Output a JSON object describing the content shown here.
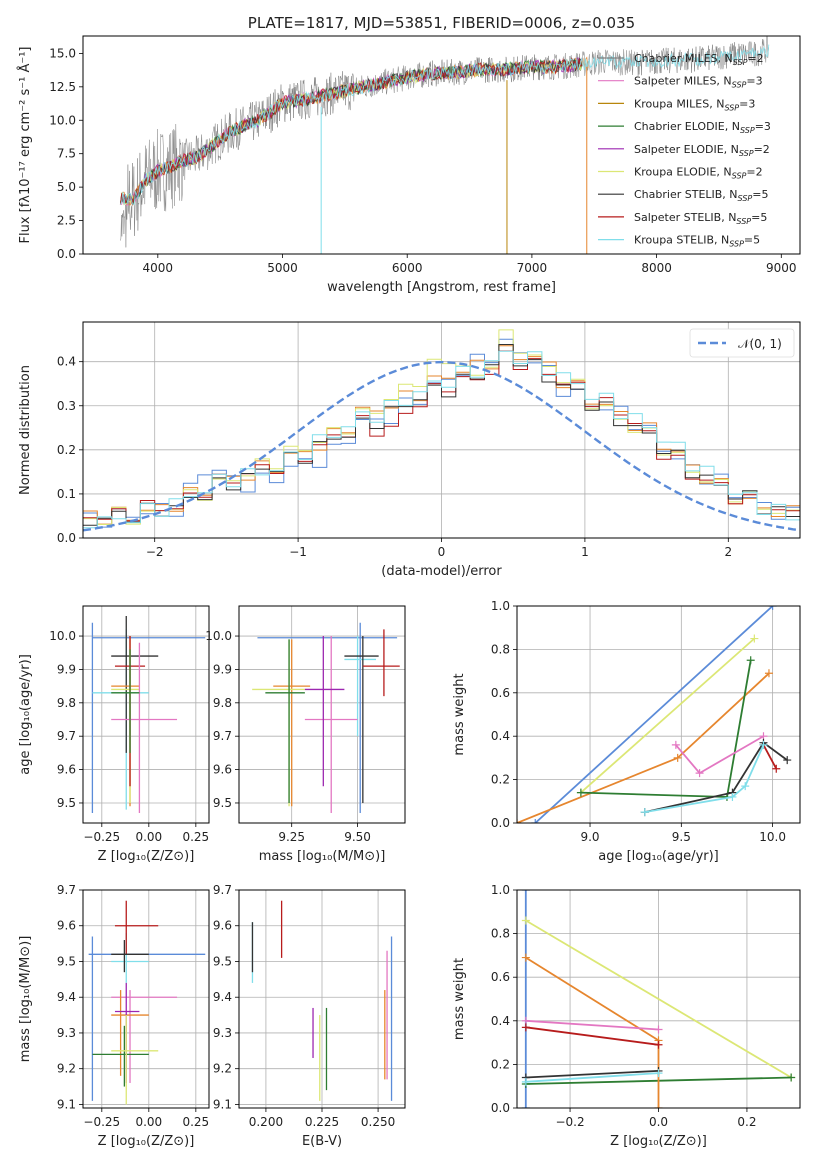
{
  "chart_data": [
    {
      "type": "line",
      "title": "PLATE=1817, MJD=53851, FIBERID=0006, z=0.035",
      "xlabel": "wavelength [Angstrom, rest frame]",
      "ylabel": "Flux [fλ10⁻¹⁷ erg cm⁻² s⁻¹ Å⁻¹]",
      "xlim": [
        3400,
        9150
      ],
      "ylim": [
        0,
        16.3
      ],
      "xticks": [
        "4000",
        "5000",
        "6000",
        "7000",
        "8000",
        "9000"
      ],
      "yticks": [
        "0.0",
        "2.5",
        "5.0",
        "7.5",
        "10.0",
        "12.5",
        "15.0"
      ],
      "grid": false,
      "legend_position": "right",
      "data_series": {
        "x": [
          3700,
          3800,
          3900,
          4000,
          4100,
          4200,
          4300,
          4400,
          4500,
          4600,
          4700,
          4800,
          4900,
          5000,
          5200,
          5400,
          5600,
          5800,
          6000,
          6200,
          6400,
          6600,
          6800,
          7000,
          7200,
          7400,
          7600,
          7800,
          8000,
          8200,
          8400,
          8600,
          8800,
          9000
        ],
        "y": [
          4.2,
          4.0,
          5.5,
          6.2,
          6.5,
          7.0,
          7.2,
          7.8,
          8.6,
          9.2,
          9.6,
          10.0,
          10.6,
          11.3,
          11.6,
          12.0,
          12.4,
          12.8,
          13.2,
          13.5,
          13.6,
          13.8,
          13.8,
          14.0,
          14.0,
          14.2,
          14.4,
          14.3,
          14.4,
          14.5,
          14.6,
          14.9,
          15.0,
          15.6
        ]
      },
      "legend": [
        {
          "label": "Chabrier MILES, N",
          "sub": "SSP",
          "val": "=2",
          "color": "#7f7f7f"
        },
        {
          "label": "Salpeter MILES, N",
          "sub": "SSP",
          "val": "=3",
          "color": "#e377c2"
        },
        {
          "label": "Kroupa MILES, N",
          "sub": "SSP",
          "val": "=3",
          "color": "#b8860b"
        },
        {
          "label": "Chabrier ELODIE, N",
          "sub": "SSP",
          "val": "=3",
          "color": "#2e7d32"
        },
        {
          "label": "Salpeter ELODIE, N",
          "sub": "SSP",
          "val": "=2",
          "color": "#9c27b0"
        },
        {
          "label": "Kroupa ELODIE, N",
          "sub": "SSP",
          "val": "=2",
          "color": "#dce775"
        },
        {
          "label": "Chabrier STELIB, N",
          "sub": "SSP",
          "val": "=5",
          "color": "#333333"
        },
        {
          "label": "Salpeter STELIB, N",
          "sub": "SSP",
          "val": "=5",
          "color": "#b71c1c"
        },
        {
          "label": "Kroupa STELIB, N",
          "sub": "SSP",
          "val": "=5",
          "color": "#80deea"
        }
      ]
    },
    {
      "type": "line",
      "xlabel": "(data-model)/error",
      "ylabel": "Normed distribution",
      "xlim": [
        -2.5,
        2.5
      ],
      "ylim": [
        0,
        0.49
      ],
      "xticks": [
        "−2",
        "−1",
        "0",
        "1",
        "2"
      ],
      "yticks": [
        "0.0",
        "0.1",
        "0.2",
        "0.3",
        "0.4"
      ],
      "grid": true,
      "legend_position": "top-right",
      "legend": [
        {
          "label": "𝒩(0, 1)",
          "color": "#5b8bd8"
        }
      ],
      "normal_curve": {
        "mean": 0,
        "sigma": 1
      },
      "histogram_bin_width": 0.1,
      "series": [
        {
          "color": "#5b8bd8",
          "values": [
            0.04,
            0.05,
            0.06,
            0.07,
            0.17,
            0.12,
            0.13,
            0.17,
            0.18,
            0.26,
            0.27,
            0.32,
            0.36,
            0.4,
            0.44,
            0.4,
            0.33,
            0.3,
            0.28,
            0.22,
            0.16,
            0.13,
            0.09,
            0.06,
            0.04
          ]
        },
        {
          "color": "#e6862e",
          "values": [
            0.05,
            0.05,
            0.06,
            0.08,
            0.12,
            0.14,
            0.16,
            0.19,
            0.22,
            0.28,
            0.3,
            0.33,
            0.37,
            0.39,
            0.42,
            0.41,
            0.35,
            0.31,
            0.27,
            0.23,
            0.17,
            0.12,
            0.08,
            0.06,
            0.05
          ]
        },
        {
          "color": "#dce775",
          "values": [
            0.04,
            0.05,
            0.05,
            0.08,
            0.11,
            0.14,
            0.17,
            0.2,
            0.23,
            0.27,
            0.31,
            0.36,
            0.41,
            0.36,
            0.46,
            0.4,
            0.36,
            0.3,
            0.26,
            0.22,
            0.16,
            0.12,
            0.09,
            0.06,
            0.04
          ]
        },
        {
          "color": "#b71c1c",
          "values": [
            0.05,
            0.05,
            0.07,
            0.07,
            0.12,
            0.14,
            0.16,
            0.18,
            0.22,
            0.26,
            0.24,
            0.31,
            0.35,
            0.36,
            0.41,
            0.39,
            0.35,
            0.31,
            0.28,
            0.21,
            0.15,
            0.12,
            0.08,
            0.06,
            0.05
          ]
        },
        {
          "color": "#333333",
          "values": [
            0.04,
            0.05,
            0.06,
            0.07,
            0.11,
            0.13,
            0.16,
            0.18,
            0.22,
            0.25,
            0.28,
            0.32,
            0.34,
            0.37,
            0.43,
            0.38,
            0.34,
            0.3,
            0.26,
            0.22,
            0.16,
            0.12,
            0.09,
            0.06,
            0.04
          ]
        },
        {
          "color": "#80deea",
          "values": [
            0.04,
            0.04,
            0.06,
            0.08,
            0.12,
            0.14,
            0.15,
            0.19,
            0.23,
            0.27,
            0.29,
            0.33,
            0.36,
            0.38,
            0.42,
            0.4,
            0.36,
            0.32,
            0.28,
            0.24,
            0.18,
            0.13,
            0.09,
            0.06,
            0.04
          ]
        }
      ]
    },
    {
      "type": "scatter",
      "xlabel": "Z [log₁₀(Z/Z⊙)]",
      "ylabel": "age  [log₁₀(age/yr)]",
      "xlim": [
        -0.35,
        0.32
      ],
      "ylim": [
        9.44,
        10.09
      ],
      "xticks": [
        "−0.25",
        "0.00",
        "0.25"
      ],
      "yticks": [
        "9.5",
        "9.6",
        "9.7",
        "9.8",
        "9.9",
        "10.0"
      ],
      "grid": true,
      "errorbars": [
        {
          "x": -0.3,
          "y": 9.995,
          "xlo": -0.3,
          "xhi": 0.3,
          "ylo": 9.47,
          "yhi": 10.04,
          "color": "#5b8bd8"
        },
        {
          "x": -0.12,
          "y": 9.83,
          "xlo": -0.3,
          "xhi": 0.0,
          "ylo": 9.48,
          "yhi": 10.02,
          "color": "#80deea"
        },
        {
          "x": -0.12,
          "y": 9.94,
          "xlo": -0.2,
          "xhi": 0.05,
          "ylo": 9.65,
          "yhi": 10.06,
          "color": "#333333"
        },
        {
          "x": -0.1,
          "y": 9.85,
          "xlo": -0.2,
          "xhi": -0.05,
          "ylo": 9.49,
          "yhi": 10.0,
          "color": "#e6862e"
        },
        {
          "x": -0.1,
          "y": 9.84,
          "xlo": -0.2,
          "xhi": -0.05,
          "ylo": 9.5,
          "yhi": 9.99,
          "color": "#dce775"
        },
        {
          "x": -0.1,
          "y": 9.91,
          "xlo": -0.18,
          "xhi": -0.02,
          "ylo": 9.55,
          "yhi": 10.0,
          "color": "#b71c1c"
        },
        {
          "x": -0.05,
          "y": 9.75,
          "xlo": -0.2,
          "xhi": 0.15,
          "ylo": 9.47,
          "yhi": 9.98,
          "color": "#e377c2"
        },
        {
          "x": -0.1,
          "y": 9.83,
          "xlo": -0.2,
          "xhi": -0.05,
          "ylo": 9.65,
          "yhi": 9.96,
          "color": "#2e7d32"
        }
      ]
    },
    {
      "type": "scatter",
      "xlabel": "mass [log₁₀(M/M⊙)]",
      "ylabel": "",
      "xlim": [
        9.05,
        9.68
      ],
      "ylim": [
        9.44,
        10.09
      ],
      "xticks": [
        "9.25",
        "9.50"
      ],
      "yticks": [
        "9.5",
        "9.6",
        "9.7",
        "9.8",
        "9.9",
        "10.0"
      ],
      "grid": true,
      "errorbars": [
        {
          "x": 9.51,
          "y": 9.995,
          "xlo": 9.12,
          "xhi": 9.65,
          "ylo": 9.47,
          "yhi": 10.04,
          "color": "#5b8bd8"
        },
        {
          "x": 9.5,
          "y": 9.93,
          "xlo": 9.45,
          "xhi": 9.57,
          "ylo": 9.7,
          "yhi": 10.0,
          "color": "#80deea"
        },
        {
          "x": 9.52,
          "y": 9.94,
          "xlo": 9.45,
          "xhi": 9.58,
          "ylo": 9.5,
          "yhi": 10.0,
          "color": "#333333"
        },
        {
          "x": 9.25,
          "y": 9.85,
          "xlo": 9.18,
          "xhi": 9.32,
          "ylo": 9.49,
          "yhi": 9.99,
          "color": "#e6862e"
        },
        {
          "x": 9.24,
          "y": 9.84,
          "xlo": 9.1,
          "xhi": 9.3,
          "ylo": 9.49,
          "yhi": 9.99,
          "color": "#dce775"
        },
        {
          "x": 9.6,
          "y": 9.91,
          "xlo": 9.52,
          "xhi": 9.66,
          "ylo": 9.82,
          "yhi": 10.02,
          "color": "#b71c1c"
        },
        {
          "x": 9.4,
          "y": 9.75,
          "xlo": 9.3,
          "xhi": 9.5,
          "ylo": 9.47,
          "yhi": 10.0,
          "color": "#e377c2"
        },
        {
          "x": 9.37,
          "y": 9.84,
          "xlo": 9.3,
          "xhi": 9.45,
          "ylo": 9.55,
          "yhi": 10.0,
          "color": "#9c27b0"
        },
        {
          "x": 9.24,
          "y": 9.83,
          "xlo": 9.15,
          "xhi": 9.3,
          "ylo": 9.5,
          "yhi": 9.99,
          "color": "#2e7d32"
        }
      ]
    },
    {
      "type": "line",
      "xlabel": "age  [log₁₀(age/yr)]",
      "ylabel": "mass weight",
      "xlim": [
        8.6,
        10.15
      ],
      "ylim": [
        0,
        1.0
      ],
      "xticks": [
        "9.0",
        "9.5",
        "10.0"
      ],
      "yticks": [
        "0.0",
        "0.2",
        "0.4",
        "0.6",
        "0.8",
        "1.0"
      ],
      "grid": true,
      "series": [
        {
          "color": "#5b8bd8",
          "points": [
            [
              8.7,
              0.0
            ],
            [
              10.0,
              1.0
            ]
          ]
        },
        {
          "color": "#e6862e",
          "points": [
            [
              8.6,
              0.0
            ],
            [
              9.48,
              0.3
            ],
            [
              9.98,
              0.69
            ]
          ]
        },
        {
          "color": "#dce775",
          "points": [
            [
              8.95,
              0.14
            ],
            [
              9.9,
              0.85
            ]
          ]
        },
        {
          "color": "#2e7d32",
          "points": [
            [
              8.95,
              0.14
            ],
            [
              9.75,
              0.12
            ],
            [
              9.88,
              0.75
            ]
          ]
        },
        {
          "color": "#e377c2",
          "points": [
            [
              9.47,
              0.36
            ],
            [
              9.6,
              0.23
            ],
            [
              9.95,
              0.4
            ]
          ]
        },
        {
          "color": "#b71c1c",
          "points": [
            [
              9.95,
              0.36
            ],
            [
              10.02,
              0.25
            ]
          ]
        },
        {
          "color": "#333333",
          "points": [
            [
              9.3,
              0.05
            ],
            [
              9.78,
              0.14
            ],
            [
              9.95,
              0.37
            ],
            [
              10.08,
              0.29
            ]
          ]
        },
        {
          "color": "#80deea",
          "points": [
            [
              9.3,
              0.05
            ],
            [
              9.78,
              0.12
            ],
            [
              9.85,
              0.17
            ],
            [
              9.95,
              0.36
            ]
          ]
        }
      ]
    },
    {
      "type": "scatter",
      "xlabel": "Z [log₁₀(Z/Z⊙)]",
      "ylabel": "mass [log₁₀(M/M⊙)]",
      "xlim": [
        -0.35,
        0.32
      ],
      "ylim": [
        9.09,
        9.7
      ],
      "xticks": [
        "−0.25",
        "0.00",
        "0.25"
      ],
      "yticks": [
        "9.1",
        "9.2",
        "9.3",
        "9.4",
        "9.5",
        "9.6",
        "9.7"
      ],
      "grid": true,
      "errorbars": [
        {
          "x": -0.3,
          "y": 9.52,
          "xlo": -0.32,
          "xhi": 0.3,
          "ylo": 9.11,
          "yhi": 9.57,
          "color": "#5b8bd8"
        },
        {
          "x": -0.12,
          "y": 9.5,
          "xlo": -0.2,
          "xhi": 0.0,
          "ylo": 9.44,
          "yhi": 9.58,
          "color": "#80deea"
        },
        {
          "x": -0.12,
          "y": 9.6,
          "xlo": -0.18,
          "xhi": 0.05,
          "ylo": 9.52,
          "yhi": 9.67,
          "color": "#b71c1c"
        },
        {
          "x": -0.1,
          "y": 9.4,
          "xlo": -0.2,
          "xhi": 0.15,
          "ylo": 9.16,
          "yhi": 9.42,
          "color": "#e377c2"
        },
        {
          "x": -0.15,
          "y": 9.35,
          "xlo": -0.2,
          "xhi": 0.0,
          "ylo": 9.18,
          "yhi": 9.42,
          "color": "#e6862e"
        },
        {
          "x": -0.12,
          "y": 9.36,
          "xlo": -0.18,
          "xhi": -0.05,
          "ylo": 9.16,
          "yhi": 9.44,
          "color": "#9c27b0"
        },
        {
          "x": -0.13,
          "y": 9.24,
          "xlo": -0.3,
          "xhi": 0.0,
          "ylo": 9.15,
          "yhi": 9.32,
          "color": "#2e7d32"
        },
        {
          "x": -0.12,
          "y": 9.25,
          "xlo": -0.2,
          "xhi": 0.05,
          "ylo": 9.1,
          "yhi": 9.35,
          "color": "#dce775"
        },
        {
          "x": -0.13,
          "y": 9.52,
          "xlo": -0.2,
          "xhi": 0.0,
          "ylo": 9.47,
          "yhi": 9.56,
          "color": "#333333"
        }
      ]
    },
    {
      "type": "scatter",
      "xlabel": "E(B-V)",
      "ylabel": "",
      "xlim": [
        0.188,
        0.262
      ],
      "ylim": [
        9.09,
        9.7
      ],
      "xticks": [
        "0.200",
        "0.225",
        "0.250"
      ],
      "yticks": [
        "9.1",
        "9.2",
        "9.3",
        "9.4",
        "9.5",
        "9.6",
        "9.7"
      ],
      "grid": true,
      "errorbars": [
        {
          "x": 0.194,
          "y": 9.52,
          "ylo": 9.44,
          "yhi": 9.61,
          "color": "#80deea"
        },
        {
          "x": 0.194,
          "y": 9.52,
          "ylo": 9.47,
          "yhi": 9.61,
          "color": "#333333"
        },
        {
          "x": 0.207,
          "y": 9.59,
          "ylo": 9.51,
          "yhi": 9.67,
          "color": "#b71c1c"
        },
        {
          "x": 0.221,
          "y": 9.29,
          "ylo": 9.23,
          "yhi": 9.37,
          "color": "#9c27b0"
        },
        {
          "x": 0.224,
          "y": 9.25,
          "ylo": 9.11,
          "yhi": 9.35,
          "color": "#dce775"
        },
        {
          "x": 0.227,
          "y": 9.26,
          "ylo": 9.14,
          "yhi": 9.37,
          "color": "#2e7d32"
        },
        {
          "x": 0.253,
          "y": 9.35,
          "ylo": 9.17,
          "yhi": 9.42,
          "color": "#e6862e"
        },
        {
          "x": 0.254,
          "y": 9.4,
          "ylo": 9.17,
          "yhi": 9.53,
          "color": "#e377c2"
        },
        {
          "x": 0.256,
          "y": 9.4,
          "ylo": 9.11,
          "yhi": 9.57,
          "color": "#5b8bd8"
        }
      ]
    },
    {
      "type": "line",
      "xlabel": "Z [log₁₀(Z/Z⊙)]",
      "ylabel": "mass weight",
      "xlim": [
        -0.32,
        0.32
      ],
      "ylim": [
        0,
        1.0
      ],
      "xticks": [
        "−0.2",
        "0.0",
        "0.2"
      ],
      "yticks": [
        "0.0",
        "0.2",
        "0.4",
        "0.6",
        "0.8",
        "1.0"
      ],
      "grid": true,
      "series": [
        {
          "color": "#5b8bd8",
          "points": [
            [
              -0.3,
              1.0
            ],
            [
              -0.3,
              0.0
            ]
          ]
        },
        {
          "color": "#dce775",
          "points": [
            [
              -0.3,
              0.86
            ],
            [
              0.3,
              0.14
            ]
          ]
        },
        {
          "color": "#2e7d32",
          "points": [
            [
              -0.3,
              0.11
            ],
            [
              0.3,
              0.14
            ]
          ]
        },
        {
          "color": "#e6862e",
          "points": [
            [
              -0.3,
              0.69
            ],
            [
              0.0,
              0.31
            ],
            [
              0.0,
              0.0
            ]
          ]
        },
        {
          "color": "#e377c2",
          "points": [
            [
              -0.3,
              0.4
            ],
            [
              0.0,
              0.36
            ]
          ]
        },
        {
          "color": "#333333",
          "points": [
            [
              -0.3,
              0.14
            ],
            [
              0.0,
              0.17
            ]
          ]
        },
        {
          "color": "#80deea",
          "points": [
            [
              -0.3,
              0.12
            ],
            [
              0.0,
              0.16
            ]
          ]
        },
        {
          "color": "#b71c1c",
          "points": [
            [
              -0.3,
              0.37
            ],
            [
              0.0,
              0.29
            ]
          ]
        }
      ]
    }
  ]
}
